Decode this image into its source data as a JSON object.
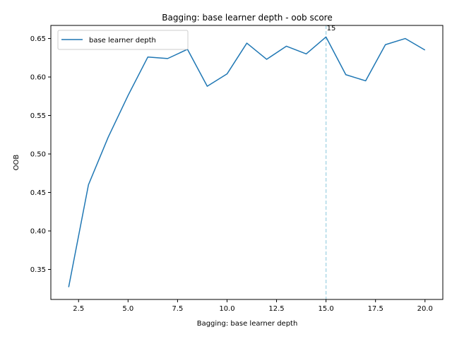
{
  "chart_data": {
    "type": "line",
    "title": "Bagging: base learner depth - oob score",
    "xlabel": "Bagging: base learner depth",
    "ylabel": "OOB",
    "xlim": [
      1.1,
      20.9
    ],
    "ylim": [
      0.311,
      0.667
    ],
    "x_ticks": [
      2.5,
      5.0,
      7.5,
      10.0,
      12.5,
      15.0,
      17.5,
      20.0
    ],
    "x_tick_labels": [
      "2.5",
      "5.0",
      "7.5",
      "10.0",
      "12.5",
      "15.0",
      "17.5",
      "20.0"
    ],
    "y_ticks": [
      0.35,
      0.4,
      0.45,
      0.5,
      0.55,
      0.6,
      0.65
    ],
    "y_tick_labels": [
      "0.35",
      "0.40",
      "0.45",
      "0.50",
      "0.55",
      "0.60",
      "0.65"
    ],
    "grid": false,
    "legend_position": "top-left",
    "series": [
      {
        "name": "base learner depth",
        "color": "#1f77b4",
        "x": [
          2,
          3,
          4,
          5,
          6,
          7,
          8,
          9,
          10,
          11,
          12,
          13,
          14,
          15,
          16,
          17,
          18,
          19,
          20
        ],
        "values": [
          0.327,
          0.46,
          0.522,
          0.576,
          0.626,
          0.624,
          0.636,
          0.588,
          0.604,
          0.644,
          0.623,
          0.64,
          0.63,
          0.652,
          0.603,
          0.595,
          0.642,
          0.65,
          0.635
        ]
      }
    ],
    "vline": {
      "x": 15,
      "color": "#add8e6",
      "label": "15"
    }
  }
}
